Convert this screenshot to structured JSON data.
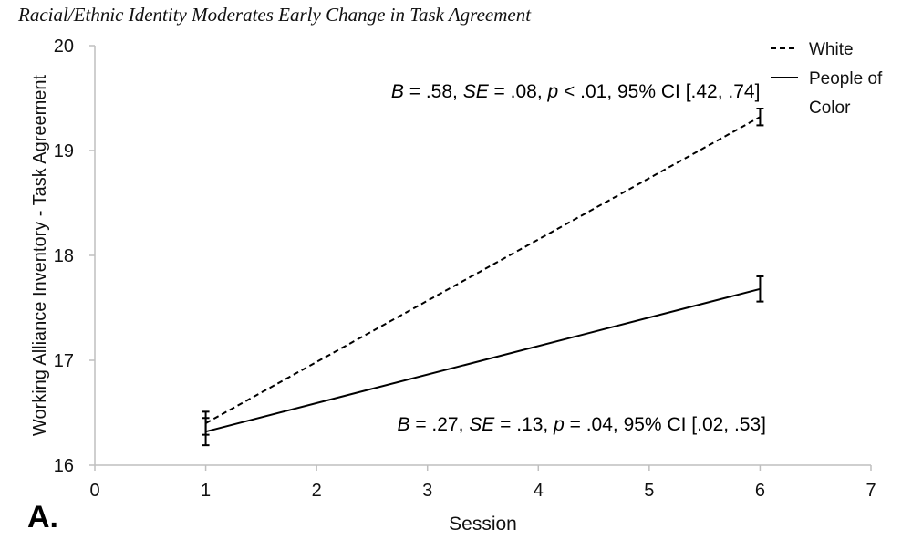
{
  "panel_label": "A.",
  "colors": {
    "axis": "#bfbfbf",
    "line": "#000000",
    "text": "#111111"
  },
  "chart_data": {
    "type": "line",
    "title": "Racial/Ethnic Identity Moderates Early Change in Task Agreement",
    "xlabel": "Session",
    "ylabel": "Working Alliance Inventory - Task Agreement",
    "xlim": [
      0,
      7
    ],
    "ylim": [
      16,
      20
    ],
    "xticks": [
      0,
      1,
      2,
      3,
      4,
      5,
      6,
      7
    ],
    "yticks": [
      16,
      17,
      18,
      19,
      20
    ],
    "grid": false,
    "legend_position": "top-right",
    "series": [
      {
        "name": "White",
        "style": "dashed",
        "x": [
          1,
          6
        ],
        "y": [
          16.4,
          19.32
        ],
        "error": [
          0.11,
          0.08
        ],
        "annotation": "B = .58, SE = .08, p < .01, 95% CI [.42, .74]",
        "annotation_parts": [
          {
            "t": "B",
            "i": true
          },
          {
            "t": " = .58, ",
            "i": false
          },
          {
            "t": "SE",
            "i": true
          },
          {
            "t": " = .08, ",
            "i": false
          },
          {
            "t": "p",
            "i": true
          },
          {
            "t": " < .01, 95% CI [.42, .74]",
            "i": false
          }
        ]
      },
      {
        "name": "People of Color",
        "legend_lines": [
          "People of",
          "Color"
        ],
        "style": "solid",
        "x": [
          1,
          6
        ],
        "y": [
          16.32,
          17.68
        ],
        "error": [
          0.13,
          0.12
        ],
        "annotation": "B = .27, SE = .13, p = .04, 95% CI [.02, .53]",
        "annotation_parts": [
          {
            "t": "B",
            "i": true
          },
          {
            "t": " = .27, ",
            "i": false
          },
          {
            "t": "SE",
            "i": true
          },
          {
            "t": " = .13, ",
            "i": false
          },
          {
            "t": "p",
            "i": true
          },
          {
            "t": " = .04, 95% CI [.02, .53]",
            "i": false
          }
        ]
      }
    ]
  }
}
